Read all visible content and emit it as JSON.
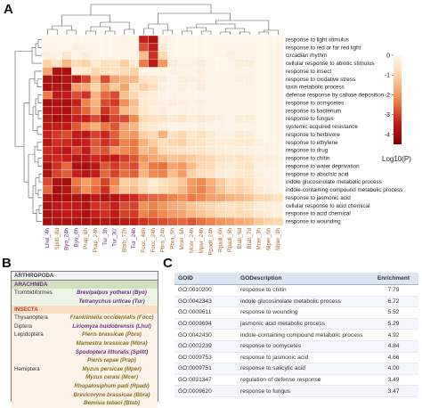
{
  "panels": {
    "a": "A",
    "b": "B",
    "c": "C"
  },
  "colors": {
    "low": "#fcf3ea",
    "mid": "#f0a06e",
    "high": "#7f0000"
  },
  "chart_data": {
    "type": "heatmap",
    "xlabel": "",
    "ylabel": "",
    "colorbar": {
      "label": "Log10(P)",
      "ticks": [
        "0",
        "-1",
        "-2",
        "-3",
        "-4"
      ],
      "range": [
        -4.5,
        0
      ]
    },
    "columns": [
      "Lhul_4h",
      "Splitt_8d",
      "Byo_24h",
      "Byo_6h",
      "Prap_6h",
      "Prap_24h",
      "Tur_3h",
      "Tur_30'",
      "Btab_72h",
      "Tur_24h",
      "Focc_48h",
      "Focc_24h",
      "Pbra_24h",
      "Pbra_6h",
      "Mcer_6h",
      "Mcer_24h",
      "Mper_24h",
      "Rpadi_24h",
      "Rpadi_6h",
      "Rpadi_3h",
      "Btab_6d",
      "Btab_7d",
      "Mcer_3h",
      "Mper_6h",
      "Mper_3h"
    ],
    "column_colors": [
      "#6b2f86",
      "#b26a2e",
      "#6b2f86",
      "#6b2f86",
      "#b26a2e",
      "#b26a2e",
      "#6b2f86",
      "#6b2f86",
      "#b26a2e",
      "#6b2f86",
      "#b26a2e",
      "#b26a2e",
      "#b26a2e",
      "#b26a2e",
      "#b26a2e",
      "#b26a2e",
      "#b26a2e",
      "#b26a2e",
      "#b26a2e",
      "#b26a2e",
      "#b26a2e",
      "#b26a2e",
      "#b26a2e",
      "#b26a2e",
      "#b26a2e"
    ],
    "rows": [
      "response to light stimulus",
      "response to red or far red light",
      "circadian rhythm",
      "cellular response to abiotic stimulus",
      "response to insect",
      "response to oxidative stress",
      "toxin metabolic process",
      "defense response by callose deposition",
      "response to oomycetes",
      "response to bacterium",
      "response to fungus",
      "systemic acquired resistance",
      "response to herbivore",
      "response to ethylene",
      "response to drug",
      "response to chitin",
      "response to water deprivation",
      "response to abscisic acid",
      "indole glucosinolate metabolic process",
      "indole-containing compound metabolic process",
      "response to jasmonic acid",
      "cellular response to acid chemical",
      "response to acid chemical",
      "response to wounding"
    ],
    "values": [
      [
        -0.1,
        -0.1,
        -0.1,
        -0.1,
        -0.1,
        -0.1,
        -0.1,
        -0.1,
        -0.2,
        -0.1,
        -3.4,
        -3.8,
        -0.2,
        -0.1,
        -0.1,
        -0.1,
        -0.1,
        -0.1,
        -0.1,
        -0.1,
        -0.1,
        -0.1,
        -0.1,
        -0.1,
        -0.1
      ],
      [
        -0.1,
        -0.1,
        -0.1,
        -0.2,
        -0.1,
        -0.1,
        -0.1,
        -0.1,
        -0.1,
        -0.1,
        -2.9,
        -3.5,
        -0.4,
        -0.1,
        -0.1,
        -0.1,
        -0.1,
        -0.1,
        -0.1,
        -0.1,
        -0.1,
        -0.1,
        -0.1,
        -0.1,
        -0.1
      ],
      [
        -0.2,
        -0.1,
        -0.5,
        -0.1,
        -0.3,
        -0.1,
        -0.1,
        -0.1,
        -0.1,
        -0.1,
        -1.4,
        -3.2,
        -0.9,
        -0.1,
        -0.1,
        -0.1,
        -0.1,
        -0.1,
        -0.1,
        -0.2,
        -0.1,
        -0.1,
        -0.1,
        -0.1,
        -0.1
      ],
      [
        -1.0,
        -0.6,
        -1.5,
        -0.8,
        -1.0,
        -0.4,
        -0.7,
        -0.6,
        -1.1,
        -0.4,
        -2.4,
        -3.6,
        -2.0,
        -0.3,
        -0.2,
        -0.2,
        -0.3,
        -0.2,
        -0.1,
        -0.1,
        -0.3,
        -0.3,
        -0.1,
        -0.1,
        -0.1
      ],
      [
        -1.8,
        -3.8,
        -3.9,
        -0.3,
        -0.4,
        -0.9,
        -0.7,
        -0.6,
        -0.8,
        -1.0,
        -0.1,
        -0.1,
        -0.1,
        -0.2,
        -0.1,
        -0.1,
        -0.2,
        -0.1,
        -0.1,
        -0.1,
        -0.1,
        -0.1,
        -0.1,
        -0.1,
        -0.1
      ],
      [
        -3.8,
        -3.9,
        -3.7,
        -3.6,
        -3.0,
        -1.5,
        -2.9,
        -1.8,
        -1.6,
        -1.5,
        -0.6,
        -0.5,
        -0.3,
        -0.1,
        -0.3,
        -0.2,
        -0.2,
        -0.1,
        -0.1,
        -0.1,
        -0.2,
        -0.2,
        -0.1,
        -0.1,
        -0.1
      ],
      [
        -3.9,
        -3.7,
        -3.8,
        -1.9,
        -1.7,
        -1.0,
        -1.9,
        -1.2,
        -1.8,
        -0.7,
        -1.1,
        -0.7,
        -0.2,
        -0.1,
        -0.2,
        -0.1,
        -0.3,
        -0.1,
        -0.1,
        -0.1,
        -0.1,
        -0.1,
        -0.1,
        -0.1,
        -0.1
      ],
      [
        -2.4,
        -3.6,
        -3.5,
        -2.9,
        -3.2,
        -1.6,
        -2.6,
        -2.9,
        -1.4,
        -0.9,
        -0.4,
        -0.3,
        -0.1,
        -0.1,
        -0.1,
        -0.1,
        -0.1,
        -0.1,
        -0.1,
        -0.1,
        -0.1,
        -0.1,
        -0.1,
        -0.1,
        -0.1
      ],
      [
        -3.9,
        -3.8,
        -3.9,
        -3.4,
        -2.3,
        -1.6,
        -2.9,
        -3.1,
        -2.1,
        -1.4,
        -0.4,
        -0.3,
        -0.2,
        -0.3,
        -0.2,
        -0.1,
        -0.2,
        -0.1,
        -0.1,
        -0.1,
        -0.1,
        -0.1,
        -0.1,
        -0.1,
        -0.1
      ],
      [
        -3.8,
        -3.7,
        -3.8,
        -3.1,
        -2.6,
        -1.8,
        -3.2,
        -2.7,
        -1.5,
        -1.2,
        -0.5,
        -0.3,
        -0.3,
        -0.1,
        -0.2,
        -0.1,
        -0.1,
        -0.1,
        -0.1,
        -0.1,
        -0.1,
        -0.1,
        -0.1,
        -0.1,
        -0.1
      ],
      [
        -3.7,
        -3.9,
        -3.8,
        -3.4,
        -3.4,
        -2.9,
        -3.7,
        -3.0,
        -2.9,
        -2.2,
        -0.8,
        -0.7,
        -0.6,
        -0.4,
        -0.6,
        -0.3,
        -0.4,
        -0.3,
        -0.2,
        -0.1,
        -0.3,
        -0.3,
        -0.1,
        -0.1,
        -0.1
      ],
      [
        -3.6,
        -3.5,
        -3.5,
        -2.8,
        -2.1,
        -1.6,
        -2.4,
        -2.8,
        -1.8,
        -1.5,
        -0.5,
        -0.4,
        -0.2,
        -0.1,
        -0.1,
        -0.1,
        -0.2,
        -0.1,
        -0.1,
        -0.1,
        -0.1,
        -0.1,
        -0.1,
        -0.1,
        -0.1
      ],
      [
        -3.4,
        -3.1,
        -2.9,
        -3.5,
        -3.6,
        -3.0,
        -3.3,
        -2.7,
        -1.9,
        -2.0,
        -1.1,
        -0.8,
        -1.6,
        -0.6,
        -0.9,
        -0.5,
        -0.7,
        -0.4,
        -0.2,
        -0.2,
        -0.4,
        -0.3,
        -0.1,
        -0.1,
        -0.1
      ],
      [
        -3.7,
        -3.2,
        -3.3,
        -3.6,
        -3.4,
        -2.8,
        -3.2,
        -2.9,
        -2.3,
        -2.4,
        -1.6,
        -1.2,
        -0.7,
        -0.9,
        -1.1,
        -0.6,
        -0.6,
        -0.4,
        -0.3,
        -0.3,
        -0.4,
        -0.4,
        -0.2,
        -0.1,
        -0.1
      ],
      [
        -3.3,
        -3.4,
        -3.6,
        -3.0,
        -3.5,
        -2.6,
        -2.8,
        -2.1,
        -2.2,
        -2.4,
        -1.4,
        -1.6,
        -0.8,
        -0.6,
        -0.6,
        -0.4,
        -0.5,
        -0.4,
        -0.3,
        -0.2,
        -0.2,
        -0.2,
        -0.1,
        -0.1,
        -0.1
      ],
      [
        -3.5,
        -3.3,
        -3.4,
        -3.7,
        -3.6,
        -3.3,
        -3.4,
        -3.5,
        -3.1,
        -2.8,
        -2.1,
        -1.8,
        -1.6,
        -1.3,
        -1.4,
        -1.2,
        -1.0,
        -0.9,
        -0.6,
        -0.5,
        -0.6,
        -0.5,
        -0.3,
        -0.3,
        -0.2
      ],
      [
        -3.9,
        -3.2,
        -2.6,
        -3.8,
        -3.9,
        -3.6,
        -2.8,
        -3.1,
        -2.7,
        -2.9,
        -1.8,
        -2.4,
        -2.5,
        -1.8,
        -2.0,
        -1.4,
        -0.9,
        -0.8,
        -0.4,
        -0.3,
        -0.5,
        -0.6,
        -0.2,
        -0.2,
        -0.1
      ],
      [
        -3.8,
        -3.0,
        -2.7,
        -3.4,
        -3.7,
        -3.5,
        -2.6,
        -3.0,
        -2.5,
        -2.7,
        -1.6,
        -2.2,
        -2.3,
        -1.4,
        -1.9,
        -1.1,
        -0.7,
        -0.6,
        -0.3,
        -0.3,
        -0.4,
        -0.5,
        -0.2,
        -0.1,
        -0.1
      ],
      [
        -2.9,
        -3.8,
        -3.9,
        -2.4,
        -1.9,
        -2.4,
        -3.0,
        -2.3,
        -1.1,
        -1.2,
        -0.8,
        -0.4,
        -0.7,
        -0.9,
        -1.3,
        -1.9,
        -2.2,
        -1.6,
        -1.2,
        -0.7,
        -0.9,
        -0.6,
        -0.3,
        -0.2,
        -0.1
      ],
      [
        -2.6,
        -3.9,
        -3.7,
        -2.7,
        -2.1,
        -2.6,
        -3.2,
        -2.0,
        -1.3,
        -1.4,
        -0.9,
        -0.5,
        -0.8,
        -1.1,
        -1.5,
        -2.0,
        -2.3,
        -1.8,
        -1.3,
        -0.8,
        -1.0,
        -0.8,
        -0.4,
        -0.2,
        -0.1
      ],
      [
        -3.8,
        -3.9,
        -3.9,
        -3.8,
        -3.9,
        -3.6,
        -3.8,
        -3.7,
        -3.4,
        -3.3,
        -2.8,
        -2.6,
        -2.5,
        -2.3,
        -2.1,
        -2.4,
        -2.2,
        -1.9,
        -1.8,
        -1.6,
        -1.5,
        -1.3,
        -0.9,
        -0.8,
        -0.7
      ],
      [
        -3.9,
        -3.6,
        -3.4,
        -3.5,
        -3.8,
        -3.2,
        -3.1,
        -3.4,
        -2.9,
        -3.0,
        -2.1,
        -2.3,
        -2.0,
        -1.7,
        -1.6,
        -1.3,
        -1.1,
        -0.9,
        -0.7,
        -0.6,
        -0.7,
        -0.6,
        -0.3,
        -0.3,
        -0.2
      ],
      [
        -3.9,
        -3.7,
        -3.5,
        -3.6,
        -3.9,
        -3.4,
        -3.2,
        -3.5,
        -3.0,
        -3.1,
        -2.3,
        -2.5,
        -2.2,
        -1.9,
        -1.8,
        -1.5,
        -1.3,
        -1.1,
        -0.8,
        -0.7,
        -0.8,
        -0.7,
        -0.4,
        -0.3,
        -0.2
      ],
      [
        -3.9,
        -3.9,
        -3.8,
        -3.9,
        -3.9,
        -3.8,
        -3.7,
        -3.8,
        -3.6,
        -3.5,
        -3.2,
        -3.0,
        -2.9,
        -2.7,
        -2.6,
        -2.8,
        -2.5,
        -2.3,
        -2.1,
        -1.9,
        -1.7,
        -1.6,
        -1.2,
        -1.0,
        -0.9
      ]
    ]
  },
  "panel_b": {
    "title": "ARTHROPODA",
    "arachnida": {
      "label": "ARACHNIDA",
      "rows": [
        {
          "order": "Trombidiformes",
          "species": "Brevipalpus yothersi (Byo)"
        },
        {
          "order": "",
          "species": "Tetranychus urticae (Tur)"
        }
      ]
    },
    "insecta": {
      "label": "INSECTA",
      "rows": [
        {
          "order": "Thysanoptera",
          "species": "Frankliniella occidentalis (Focc)"
        },
        {
          "order": "Diptera",
          "species": "Liriomyza huidobrensis (Lhul)"
        },
        {
          "order": "Lepidoptera",
          "species": "Pieris brassicae (Pbra)"
        },
        {
          "order": "",
          "species": "Mamestra brassicae (Mbra)"
        },
        {
          "order": "",
          "species": "Spodoptera littoralis (Splitt)"
        },
        {
          "order": "",
          "species": "Pieris rapae (Prap)"
        },
        {
          "order": "Hemiptera",
          "species": "Myzus persicae (Mper)"
        },
        {
          "order": "",
          "species": "Myzus cerasi (Mcer)"
        },
        {
          "order": "",
          "species": "Rhopalosiphum padi (Rpadi)"
        },
        {
          "order": "",
          "species": "Brevicoryne brassicae (Bbra)"
        },
        {
          "order": "",
          "species": "Bemisia tabaci (Btab)"
        }
      ]
    }
  },
  "panel_c": {
    "headers": {
      "goid": "GOID",
      "desc": "GODescription",
      "enrich": "Enrichment"
    },
    "rows": [
      {
        "goid": "GO:0010200",
        "desc": "response to chitin",
        "enrich": "7.79"
      },
      {
        "goid": "GO:0042343",
        "desc": "indole glucosinolate metabolic process",
        "enrich": "6.72"
      },
      {
        "goid": "GO:0009611",
        "desc": "response to wounding",
        "enrich": "5.52"
      },
      {
        "goid": "GO:0009694",
        "desc": "jasmonic acid metabolic process",
        "enrich": "5.29"
      },
      {
        "goid": "GO:0042430",
        "desc": "indole-containing compound metabolic process",
        "enrich": "4.92"
      },
      {
        "goid": "GO:0002239",
        "desc": "response to oomycetes",
        "enrich": "4.84"
      },
      {
        "goid": "GO:0009753",
        "desc": "response to jasmonic acid",
        "enrich": "4.66"
      },
      {
        "goid": "GO:0009751",
        "desc": "response to salicylic acid",
        "enrich": "4.00"
      },
      {
        "goid": "GO:0031347",
        "desc": "regulation of defense response",
        "enrich": "3.49"
      },
      {
        "goid": "GO:0009620",
        "desc": "response to fungus",
        "enrich": "3.47"
      }
    ]
  }
}
